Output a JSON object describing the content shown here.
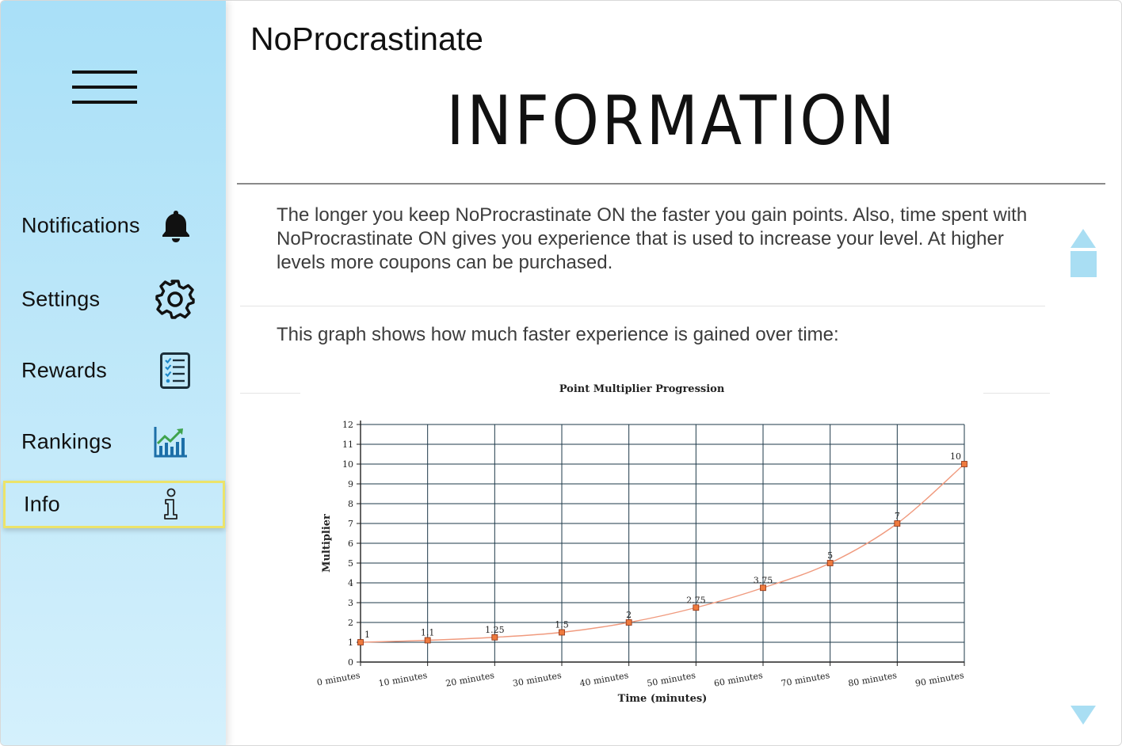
{
  "app": {
    "title": "NoProcrastinate"
  },
  "page": {
    "title": "INFORMATION"
  },
  "sidebar": {
    "menu_icon": "hamburger-menu-icon",
    "items": [
      {
        "label": "Notifications",
        "icon": "bell-icon",
        "active": false
      },
      {
        "label": "Settings",
        "icon": "gear-icon",
        "active": false
      },
      {
        "label": "Rewards",
        "icon": "checklist-icon",
        "active": false
      },
      {
        "label": "Rankings",
        "icon": "rising-chart-icon",
        "active": false
      },
      {
        "label": "Info",
        "icon": "info-icon",
        "active": true
      }
    ]
  },
  "content": {
    "paragraph": "The longer you keep NoProcrastinate ON the faster you gain points. Also, time spent with NoProcrastinate ON gives you experience that is used to increase your level. At higher levels more coupons can be purchased.",
    "graph_caption": "This graph shows how much faster experience is gained over time:"
  },
  "chart_data": {
    "type": "line",
    "title": "Point Multiplier Progression",
    "xlabel": "Time (minutes)",
    "ylabel": "Multiplier",
    "categories": [
      "0 minutes",
      "10 minutes",
      "20 minutes",
      "30 minutes",
      "40 minutes",
      "50 minutes",
      "60 minutes",
      "70 minutes",
      "80 minutes",
      "90 minutes"
    ],
    "values": [
      1,
      1.1,
      1.25,
      1.5,
      2,
      2.75,
      3.75,
      5,
      7,
      10
    ],
    "data_labels": [
      "1",
      "1.1",
      "1.25",
      "1.5",
      "2",
      "2.75",
      "3.75",
      "5",
      "7",
      "10"
    ],
    "y_ticks": [
      "0",
      "1",
      "2",
      "3",
      "4",
      "5",
      "6",
      "7",
      "8",
      "9",
      "10",
      "11",
      "12"
    ],
    "ylim": [
      0,
      12
    ],
    "grid": true,
    "colors": {
      "line": "#f09a7e",
      "marker_fill": "#ee7a3e",
      "marker_stroke": "#8a2e10",
      "grid": "#1e3a4a"
    }
  },
  "scroll": {
    "up_icon": "scroll-up-arrow-icon",
    "down_icon": "scroll-down-arrow-icon"
  },
  "colors": {
    "sidebar": "#a9e0f8",
    "active_border": "#ece36a",
    "scroll_arrow": "#a9def3"
  }
}
